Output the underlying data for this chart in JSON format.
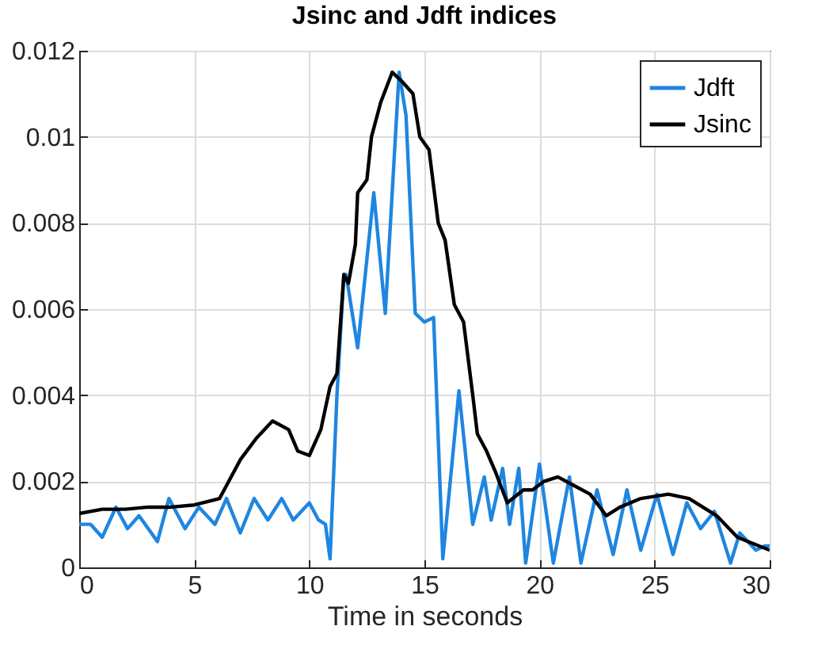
{
  "chart_data": {
    "type": "line",
    "title": "Jsinc and Jdft indices",
    "xlabel": "Time in seconds",
    "series": [
      {
        "name": "Jdft",
        "color": "#1f86e0",
        "x": [
          0,
          0.5,
          1.0,
          1.6,
          2.1,
          2.6,
          3.4,
          3.9,
          4.6,
          5.2,
          5.9,
          6.4,
          7.0,
          7.6,
          8.2,
          8.8,
          9.3,
          10.0,
          10.4,
          10.7,
          10.9,
          11.2,
          11.5,
          11.6,
          12.1,
          12.8,
          13.3,
          13.9,
          14.2,
          14.6,
          15.0,
          15.4,
          15.8,
          16.5,
          17.1,
          17.6,
          17.9,
          18.4,
          18.7,
          19.1,
          19.4,
          20.0,
          20.6,
          21.3,
          21.8,
          22.5,
          23.2,
          23.8,
          24.4,
          25.1,
          25.8,
          26.4,
          27.0,
          27.6,
          28.3,
          28.7,
          29.4,
          29.8,
          30
        ],
        "values": [
          0.001,
          0.001,
          0.0007,
          0.0014,
          0.0009,
          0.0012,
          0.0006,
          0.0016,
          0.0009,
          0.0014,
          0.001,
          0.0016,
          0.0008,
          0.0016,
          0.0011,
          0.0016,
          0.0011,
          0.0015,
          0.0011,
          0.001,
          0.0002,
          0.004,
          0.0068,
          0.0068,
          0.0051,
          0.0087,
          0.0059,
          0.0115,
          0.0105,
          0.0059,
          0.0057,
          0.0058,
          0.0002,
          0.0041,
          0.001,
          0.0021,
          0.0011,
          0.0023,
          0.001,
          0.0023,
          0.0001,
          0.0024,
          0.0001,
          0.0021,
          0.0001,
          0.0018,
          0.0003,
          0.0018,
          0.0004,
          0.0017,
          0.0003,
          0.0015,
          0.0009,
          0.0013,
          0.0001,
          0.0008,
          0.0004,
          0.0005,
          0.0005
        ]
      },
      {
        "name": "Jsinc",
        "color": "#000000",
        "x": [
          0,
          1,
          2,
          3,
          4,
          5,
          6.1,
          7.0,
          7.7,
          8.4,
          9.1,
          9.5,
          10.0,
          10.5,
          10.9,
          11.2,
          11.5,
          11.7,
          12.0,
          12.1,
          12.5,
          12.7,
          13.1,
          13.6,
          14.0,
          14.5,
          14.8,
          15.2,
          15.6,
          15.9,
          16.3,
          16.7,
          17.1,
          17.3,
          17.7,
          18.1,
          18.6,
          19.3,
          19.7,
          20.2,
          20.8,
          21.5,
          22.2,
          22.9,
          23.5,
          24.4,
          25.6,
          26.5,
          27.7,
          28.6,
          30
        ],
        "values": [
          0.00125,
          0.00135,
          0.00135,
          0.0014,
          0.0014,
          0.00145,
          0.0016,
          0.0025,
          0.003,
          0.0034,
          0.0032,
          0.0027,
          0.0026,
          0.0032,
          0.0042,
          0.0045,
          0.0068,
          0.0066,
          0.0075,
          0.0087,
          0.009,
          0.01,
          0.0108,
          0.0115,
          0.0113,
          0.011,
          0.01,
          0.0097,
          0.008,
          0.0076,
          0.0061,
          0.0057,
          0.004,
          0.0031,
          0.0027,
          0.0022,
          0.0015,
          0.0018,
          0.0018,
          0.002,
          0.0021,
          0.0019,
          0.0017,
          0.0012,
          0.0014,
          0.0016,
          0.0017,
          0.0016,
          0.0012,
          0.0007,
          0.0004
        ]
      }
    ],
    "xlim": [
      0,
      30
    ],
    "xticks": [
      0,
      5,
      10,
      15,
      20,
      25,
      30
    ],
    "ylim": [
      0,
      0.012
    ],
    "yticks": [
      0,
      0.002,
      0.004,
      0.006,
      0.008,
      0.01,
      0.012
    ],
    "grid": true,
    "legend": "top right",
    "line_style": "solid",
    "marker": "none"
  }
}
